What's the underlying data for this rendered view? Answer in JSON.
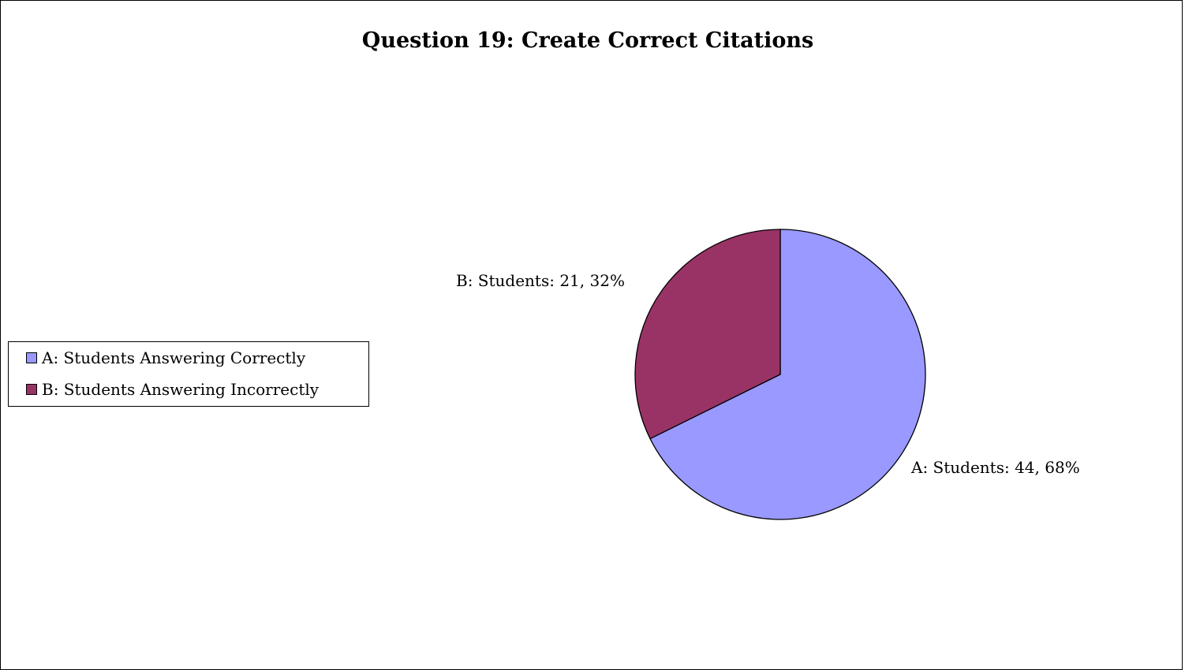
{
  "chart_data": {
    "type": "pie",
    "title": "Question 19: Create Correct Citations",
    "series": [
      {
        "label": "A: Students",
        "value": 44,
        "percent": "68%",
        "data_label": "A: Students: 44, 68%",
        "legend_label": "A: Students Answering Correctly",
        "color": "#9999ff"
      },
      {
        "label": "B: Students",
        "value": 21,
        "percent": "32%",
        "data_label": "B: Students: 21, 32%",
        "legend_label": "B: Students Answering Incorrectly",
        "color": "#993366"
      }
    ],
    "start_angle": "12 o'clock",
    "direction": "clockwise",
    "legend_position": "left"
  }
}
